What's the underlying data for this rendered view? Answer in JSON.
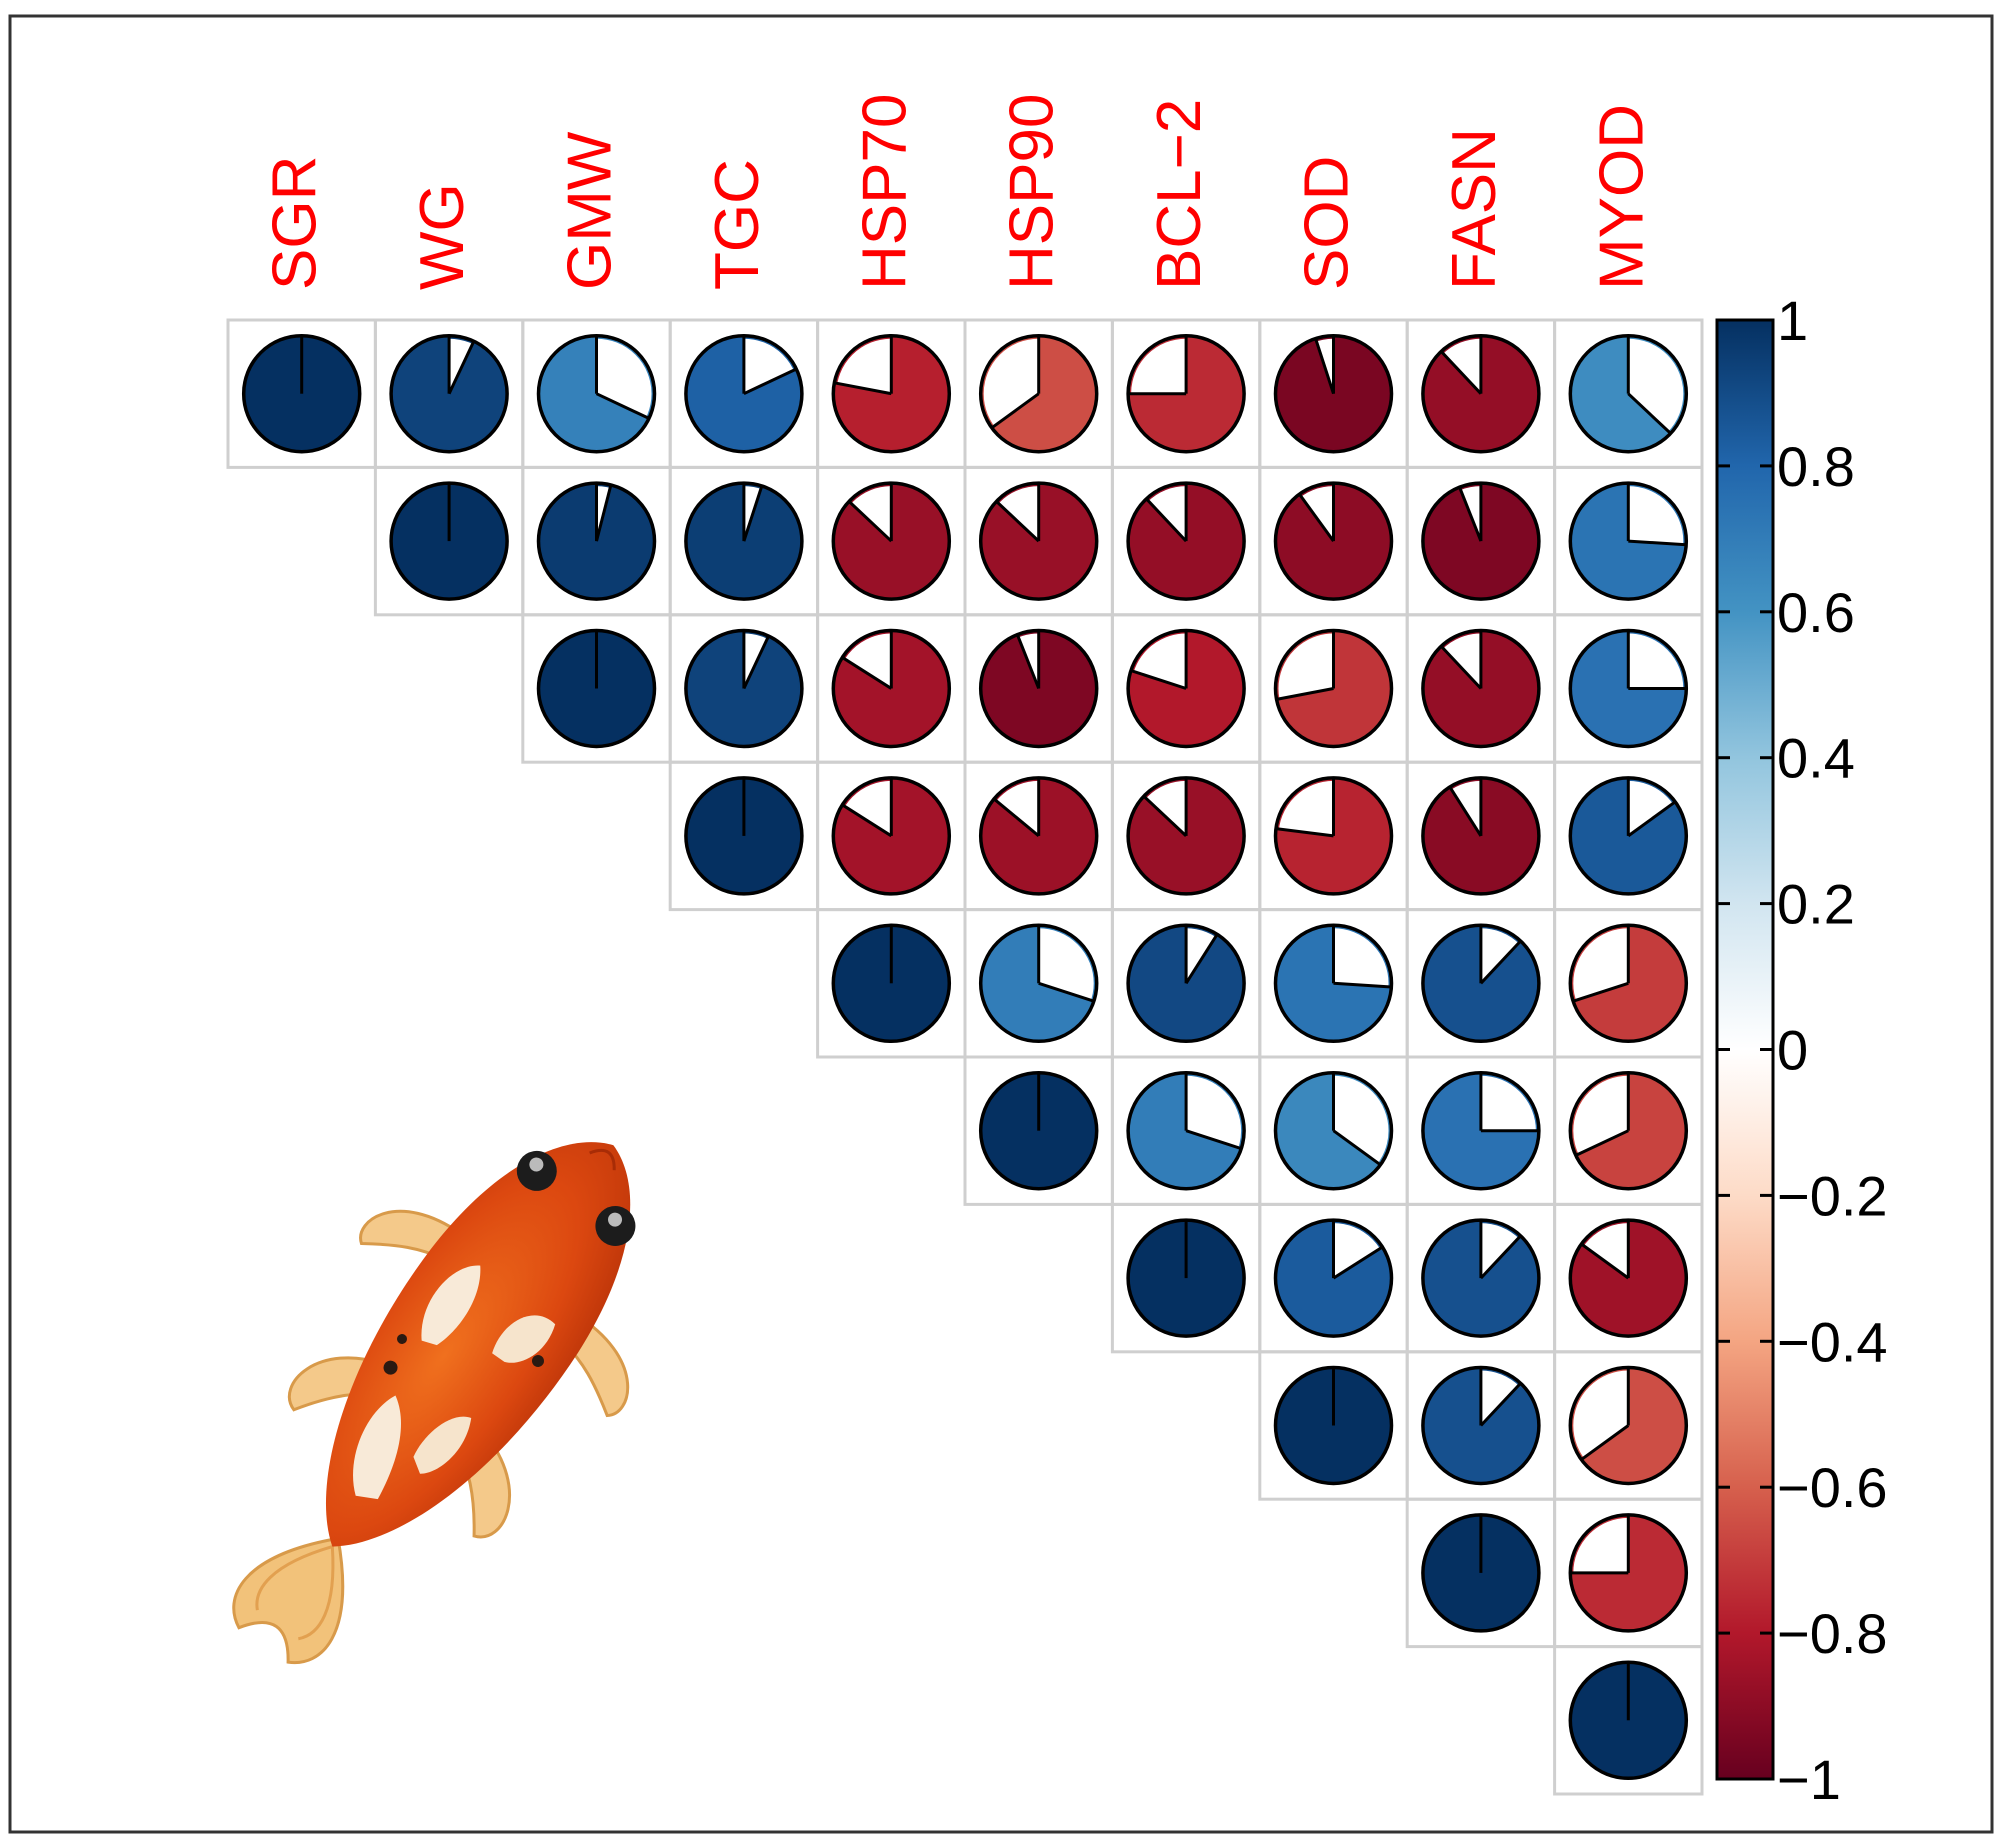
{
  "chart_data": {
    "type": "heatmap",
    "style": "corrplot-pie",
    "layout": "upper-triangle",
    "variables": [
      "SGR",
      "WG",
      "GMW",
      "TGC",
      "HSP70",
      "HSP90",
      "BCL−2",
      "SOD",
      "FASN",
      "MYOD"
    ],
    "label_color": "#ff0000",
    "colorbar": {
      "range": [
        -1,
        1
      ],
      "ticks": [
        "1",
        "0.8",
        "0.6",
        "0.4",
        "0.2",
        "0",
        "−0.2",
        "−0.4",
        "−0.6",
        "−0.8",
        "−1"
      ],
      "tick_values": [
        1,
        0.8,
        0.6,
        0.4,
        0.2,
        0,
        -0.2,
        -0.4,
        -0.6,
        -0.8,
        -1
      ],
      "colors": [
        "#67001f",
        "#b2182b",
        "#d6604d",
        "#f4a582",
        "#fddbc7",
        "#ffffff",
        "#d1e5f0",
        "#92c5de",
        "#4393c3",
        "#2166ac",
        "#053061"
      ]
    },
    "matrix": [
      [
        1.0,
        0.93,
        0.68,
        0.82,
        -0.78,
        -0.65,
        -0.75,
        -0.95,
        -0.88,
        0.63
      ],
      [
        null,
        1.0,
        0.96,
        0.95,
        -0.87,
        -0.87,
        -0.88,
        -0.9,
        -0.94,
        0.74
      ],
      [
        null,
        null,
        1.0,
        0.93,
        -0.84,
        -0.94,
        -0.8,
        -0.72,
        -0.88,
        0.75
      ],
      [
        null,
        null,
        null,
        1.0,
        -0.84,
        -0.86,
        -0.87,
        -0.77,
        -0.91,
        0.85
      ],
      [
        null,
        null,
        null,
        null,
        1.0,
        0.7,
        0.91,
        0.74,
        0.88,
        -0.7
      ],
      [
        null,
        null,
        null,
        null,
        null,
        1.0,
        0.7,
        0.65,
        0.75,
        -0.68
      ],
      [
        null,
        null,
        null,
        null,
        null,
        null,
        1.0,
        0.84,
        0.88,
        -0.85
      ],
      [
        null,
        null,
        null,
        null,
        null,
        null,
        null,
        1.0,
        0.88,
        -0.65
      ],
      [
        null,
        null,
        null,
        null,
        null,
        null,
        null,
        null,
        1.0,
        -0.75
      ],
      [
        null,
        null,
        null,
        null,
        null,
        null,
        null,
        null,
        null,
        1.0
      ]
    ]
  },
  "illustration": {
    "icon": "koi-fish-icon"
  }
}
